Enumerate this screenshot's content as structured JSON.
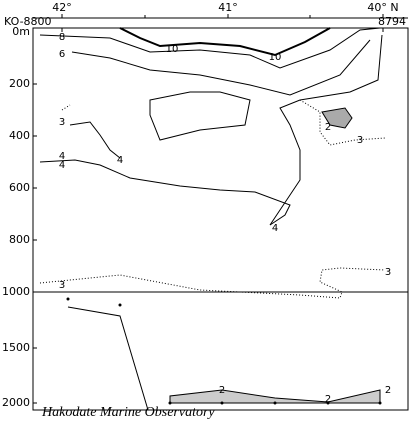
{
  "top_axis": {
    "labels": [
      "42°",
      "41°",
      "40° N"
    ],
    "left_station": "KO-8800",
    "right_station": "8794"
  },
  "depth_axis": {
    "labels": [
      "0m",
      "200",
      "400",
      "600",
      "800",
      "1000",
      "1500",
      "2000"
    ]
  },
  "contour_labels": [
    "8",
    "6",
    "10",
    "10",
    "3",
    "4",
    "4",
    "4",
    "2",
    "3",
    "4",
    "3",
    "3",
    "2",
    "2",
    "2"
  ],
  "footer": "Hakodate Marine Observatory"
}
